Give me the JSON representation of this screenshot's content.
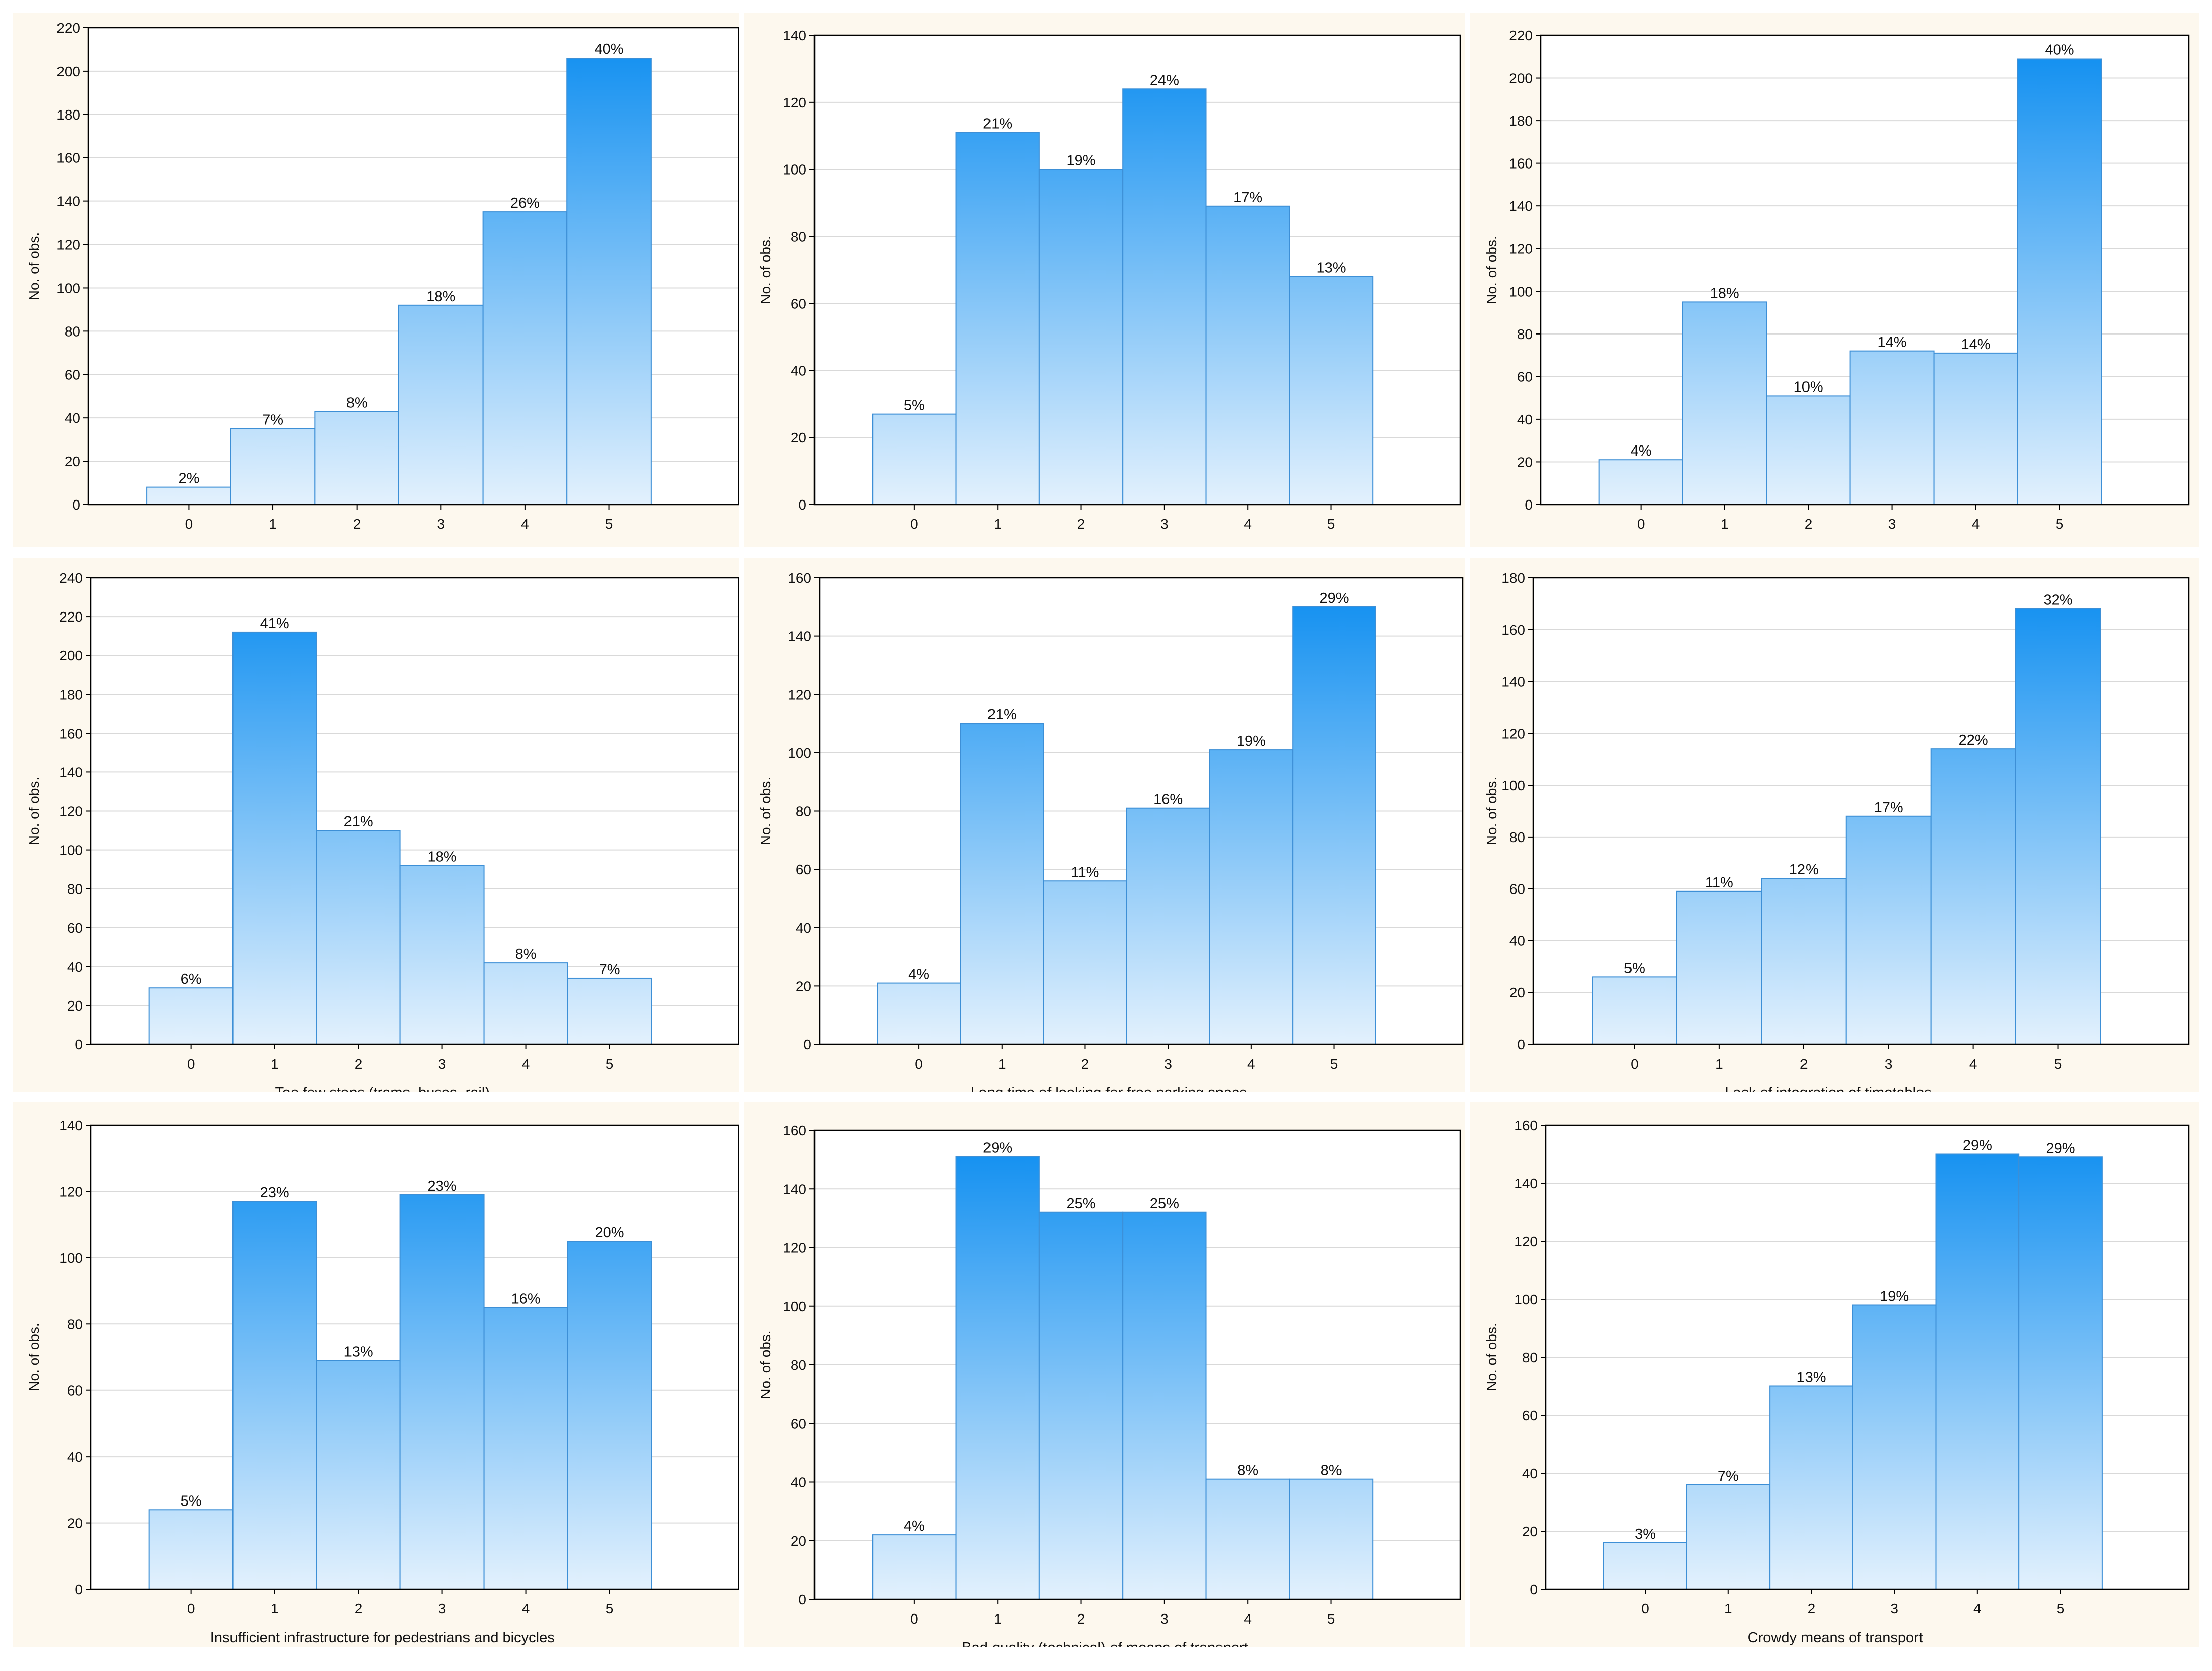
{
  "page": {
    "background": "#ffffff",
    "panel_background": "#fdf8ee"
  },
  "colors": {
    "bar_top": "#0a8cf0",
    "bar_bottom": "#e3f1fd",
    "bar_stroke": "#3d8fd6",
    "grid": "#d9d9d9"
  },
  "chart_data": [
    {
      "type": "bar",
      "xlabel": "Congestion",
      "ylabel": "No. of obs.",
      "categories": [
        "0",
        "1",
        "2",
        "3",
        "4",
        "5"
      ],
      "values": [
        8,
        35,
        43,
        92,
        135,
        206
      ],
      "labels": [
        "2%",
        "7%",
        "8%",
        "18%",
        "26%",
        "40%"
      ],
      "ylim": [
        0,
        220
      ],
      "ystep": 20,
      "grid": true
    },
    {
      "type": "bar",
      "xlabel": "Need for frequent switch of transport mode",
      "ylabel": "No. of obs.",
      "categories": [
        "0",
        "1",
        "2",
        "3",
        "4",
        "5"
      ],
      "values": [
        27,
        111,
        100,
        124,
        89,
        68
      ],
      "labels": [
        "5%",
        "21%",
        "19%",
        "24%",
        "17%",
        "13%"
      ],
      "ylim": [
        0,
        140
      ],
      "ystep": 20,
      "grid": true
    },
    {
      "type": "bar",
      "xlabel": "Lack of joint ticket for agglomeration",
      "ylabel": "No. of obs.",
      "categories": [
        "0",
        "1",
        "2",
        "3",
        "4",
        "5"
      ],
      "values": [
        21,
        95,
        51,
        72,
        71,
        209
      ],
      "labels": [
        "4%",
        "18%",
        "10%",
        "14%",
        "14%",
        "40%"
      ],
      "ylim": [
        0,
        220
      ],
      "ystep": 20,
      "grid": true
    },
    {
      "type": "bar",
      "xlabel": "Too few stops (trams, buses, rail)",
      "ylabel": "No. of obs.",
      "categories": [
        "0",
        "1",
        "2",
        "3",
        "4",
        "5"
      ],
      "values": [
        29,
        212,
        110,
        92,
        42,
        34
      ],
      "labels": [
        "6%",
        "41%",
        "21%",
        "18%",
        "8%",
        "7%"
      ],
      "ylim": [
        0,
        240
      ],
      "ystep": 20,
      "grid": true
    },
    {
      "type": "bar",
      "xlabel": "Long time of looking for free parking space",
      "ylabel": "No. of obs.",
      "categories": [
        "0",
        "1",
        "2",
        "3",
        "4",
        "5"
      ],
      "values": [
        21,
        110,
        56,
        81,
        101,
        150
      ],
      "labels": [
        "4%",
        "21%",
        "11%",
        "16%",
        "19%",
        "29%"
      ],
      "ylim": [
        0,
        160
      ],
      "ystep": 20,
      "grid": true
    },
    {
      "type": "bar",
      "xlabel": "Lack of integration of timetables",
      "ylabel": "No. of obs.",
      "categories": [
        "0",
        "1",
        "2",
        "3",
        "4",
        "5"
      ],
      "values": [
        26,
        59,
        64,
        88,
        114,
        168
      ],
      "labels": [
        "5%",
        "11%",
        "12%",
        "17%",
        "22%",
        "32%"
      ],
      "ylim": [
        0,
        180
      ],
      "ystep": 20,
      "grid": true
    },
    {
      "type": "bar",
      "xlabel": "Insufficient infrastructure for pedestrians and bicycles",
      "ylabel": "No. of obs.",
      "categories": [
        "0",
        "1",
        "2",
        "3",
        "4",
        "5"
      ],
      "values": [
        24,
        117,
        69,
        119,
        85,
        105
      ],
      "labels": [
        "5%",
        "23%",
        "13%",
        "23%",
        "16%",
        "20%"
      ],
      "ylim": [
        0,
        140
      ],
      "ystep": 20,
      "grid": true
    },
    {
      "type": "bar",
      "xlabel": "Bad quality (technical) of means of transport",
      "ylabel": "No. of obs.",
      "categories": [
        "0",
        "1",
        "2",
        "3",
        "4",
        "5"
      ],
      "values": [
        22,
        151,
        132,
        132,
        41,
        41
      ],
      "labels": [
        "4%",
        "29%",
        "25%",
        "25%",
        "8%",
        "8%"
      ],
      "ylim": [
        0,
        160
      ],
      "ystep": 20,
      "grid": true
    },
    {
      "type": "bar",
      "xlabel": "Crowdy means of transport",
      "ylabel": "No. of obs.",
      "categories": [
        "0",
        "1",
        "2",
        "3",
        "4",
        "5"
      ],
      "values": [
        16,
        36,
        70,
        98,
        150,
        149
      ],
      "labels": [
        "3%",
        "7%",
        "13%",
        "19%",
        "29%",
        "29%"
      ],
      "ylim": [
        0,
        160
      ],
      "ystep": 20,
      "grid": true
    }
  ]
}
